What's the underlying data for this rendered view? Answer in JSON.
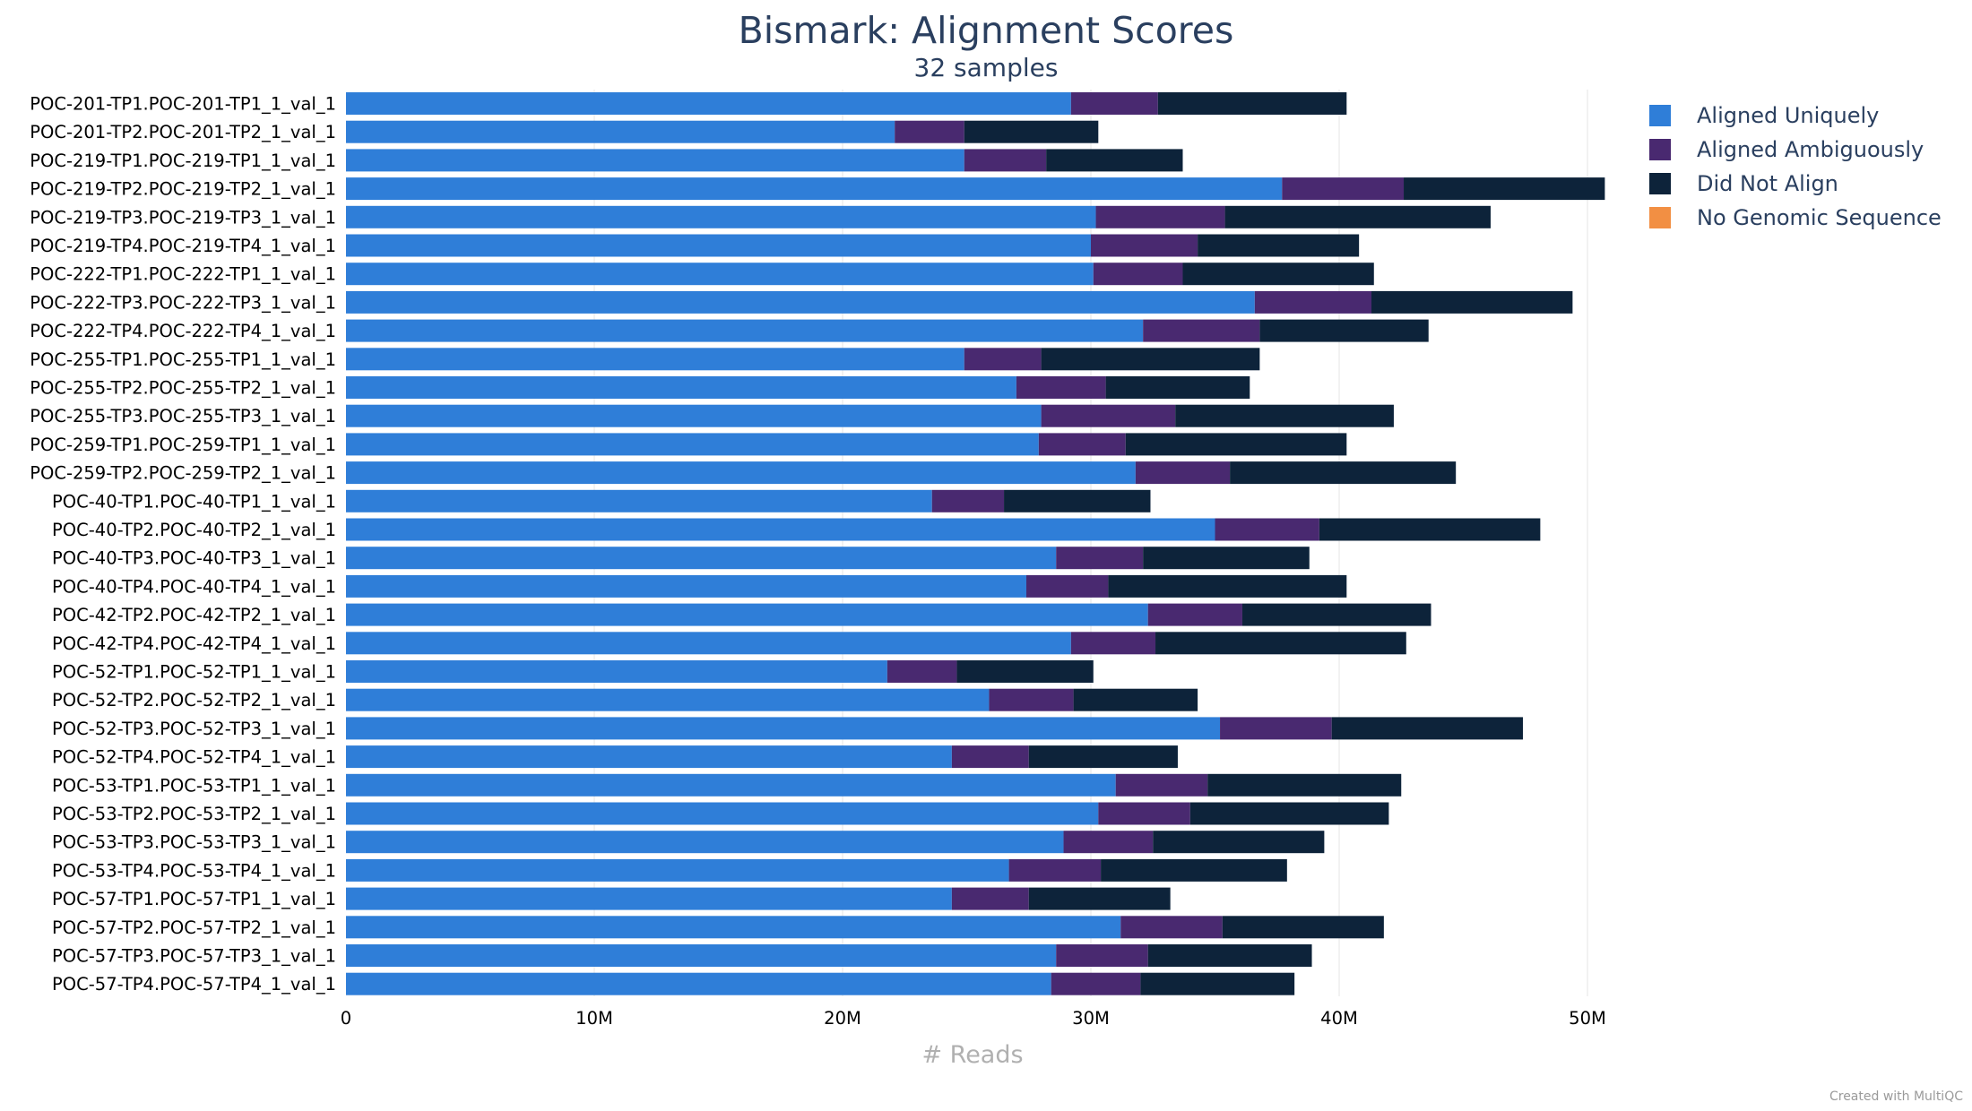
{
  "chart_data": {
    "type": "bar",
    "orientation": "horizontal",
    "stacked": true,
    "title": "Bismark: Alignment Scores",
    "subtitle": "32 samples",
    "xlabel": "# Reads",
    "xlim": [
      0,
      52000000
    ],
    "xticks": [
      {
        "value": 0,
        "label": "0"
      },
      {
        "value": 10000000,
        "label": "10M"
      },
      {
        "value": 20000000,
        "label": "20M"
      },
      {
        "value": 30000000,
        "label": "30M"
      },
      {
        "value": 40000000,
        "label": "40M"
      },
      {
        "value": 50000000,
        "label": "50M"
      }
    ],
    "grid": true,
    "legend_position": "top-right",
    "categories": [
      "POC-201-TP1.POC-201-TP1_1_val_1",
      "POC-201-TP2.POC-201-TP2_1_val_1",
      "POC-219-TP1.POC-219-TP1_1_val_1",
      "POC-219-TP2.POC-219-TP2_1_val_1",
      "POC-219-TP3.POC-219-TP3_1_val_1",
      "POC-219-TP4.POC-219-TP4_1_val_1",
      "POC-222-TP1.POC-222-TP1_1_val_1",
      "POC-222-TP3.POC-222-TP3_1_val_1",
      "POC-222-TP4.POC-222-TP4_1_val_1",
      "POC-255-TP1.POC-255-TP1_1_val_1",
      "POC-255-TP2.POC-255-TP2_1_val_1",
      "POC-255-TP3.POC-255-TP3_1_val_1",
      "POC-259-TP1.POC-259-TP1_1_val_1",
      "POC-259-TP2.POC-259-TP2_1_val_1",
      "POC-40-TP1.POC-40-TP1_1_val_1",
      "POC-40-TP2.POC-40-TP2_1_val_1",
      "POC-40-TP3.POC-40-TP3_1_val_1",
      "POC-40-TP4.POC-40-TP4_1_val_1",
      "POC-42-TP2.POC-42-TP2_1_val_1",
      "POC-42-TP4.POC-42-TP4_1_val_1",
      "POC-52-TP1.POC-52-TP1_1_val_1",
      "POC-52-TP2.POC-52-TP2_1_val_1",
      "POC-52-TP3.POC-52-TP3_1_val_1",
      "POC-52-TP4.POC-52-TP4_1_val_1",
      "POC-53-TP1.POC-53-TP1_1_val_1",
      "POC-53-TP2.POC-53-TP2_1_val_1",
      "POC-53-TP3.POC-53-TP3_1_val_1",
      "POC-53-TP4.POC-53-TP4_1_val_1",
      "POC-57-TP1.POC-57-TP1_1_val_1",
      "POC-57-TP2.POC-57-TP2_1_val_1",
      "POC-57-TP3.POC-57-TP3_1_val_1",
      "POC-57-TP4.POC-57-TP4_1_val_1"
    ],
    "series": [
      {
        "name": "Aligned Uniquely",
        "color": "#2f7ed8",
        "values": [
          29.2,
          22.1,
          24.9,
          37.7,
          30.2,
          30.0,
          30.1,
          36.6,
          32.1,
          24.9,
          27.0,
          28.0,
          27.9,
          31.8,
          23.6,
          35.0,
          28.6,
          27.4,
          32.3,
          29.2,
          21.8,
          25.9,
          35.2,
          24.4,
          31.0,
          30.3,
          28.9,
          26.7,
          24.4,
          31.2,
          28.6,
          28.4
        ]
      },
      {
        "name": "Aligned Ambiguously",
        "color": "#492970",
        "values": [
          3.5,
          2.8,
          3.3,
          4.9,
          5.2,
          4.3,
          3.6,
          4.7,
          4.7,
          3.1,
          3.6,
          5.4,
          3.5,
          3.8,
          2.9,
          4.2,
          3.5,
          3.3,
          3.8,
          3.4,
          2.8,
          3.4,
          4.5,
          3.1,
          3.7,
          3.7,
          3.6,
          3.7,
          3.1,
          4.1,
          3.7,
          3.6
        ]
      },
      {
        "name": "Did Not Align",
        "color": "#0d233a",
        "values": [
          7.6,
          5.4,
          5.5,
          8.1,
          10.7,
          6.5,
          7.7,
          8.1,
          6.8,
          8.8,
          5.8,
          8.8,
          8.9,
          9.1,
          5.9,
          8.9,
          6.7,
          9.6,
          7.6,
          10.1,
          5.5,
          5.0,
          7.7,
          6.0,
          7.8,
          8.0,
          6.9,
          7.5,
          5.7,
          6.5,
          6.6,
          6.2
        ]
      },
      {
        "name": "No Genomic Sequence",
        "color": "#f28f43",
        "values": [
          0,
          0,
          0,
          0,
          0,
          0,
          0,
          0,
          0,
          0,
          0,
          0,
          0,
          0,
          0,
          0,
          0,
          0,
          0,
          0,
          0,
          0,
          0,
          0,
          0,
          0,
          0,
          0,
          0,
          0,
          0,
          0
        ]
      }
    ],
    "value_unit_multiplier": 1000000,
    "credit": "Created with MultiQC"
  }
}
